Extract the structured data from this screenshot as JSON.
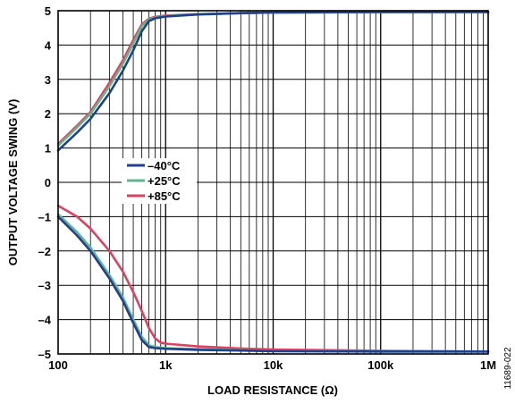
{
  "figure_id": "11689-022",
  "colors": {
    "minus40": "#1f3f8f",
    "plus25": "#5fb78f",
    "plus85": "#e0405f",
    "grid": "#000000"
  },
  "chart_data": {
    "type": "line",
    "xlabel": "LOAD RESISTANCE (Ω)",
    "ylabel": "OUTPUT VOLTAGE SWING (V)",
    "x_scale": "log",
    "xlim": [
      100,
      1000000
    ],
    "ylim": [
      -5,
      5
    ],
    "grid": true,
    "x_ticks": [
      {
        "value": 100,
        "label": "100"
      },
      {
        "value": 1000,
        "label": "1k"
      },
      {
        "value": 10000,
        "label": "10k"
      },
      {
        "value": 100000,
        "label": "100k"
      },
      {
        "value": 1000000,
        "label": "1M"
      }
    ],
    "y_ticks": [
      {
        "value": 5,
        "label": "5"
      },
      {
        "value": 4,
        "label": "4"
      },
      {
        "value": 3,
        "label": "3"
      },
      {
        "value": 2,
        "label": "2"
      },
      {
        "value": 1,
        "label": "1"
      },
      {
        "value": 0,
        "label": "0"
      },
      {
        "value": -1,
        "label": "–1"
      },
      {
        "value": -2,
        "label": "–2"
      },
      {
        "value": -3,
        "label": "–3"
      },
      {
        "value": -4,
        "label": "–4"
      },
      {
        "value": -5,
        "label": "–5"
      }
    ],
    "legend_position": "center-left",
    "series": [
      {
        "name": "–40°C",
        "color": "#1f3f8f",
        "high": {
          "x": [
            100,
            150,
            200,
            300,
            400,
            500,
            600,
            700,
            800,
            1000,
            2000,
            5000,
            10000,
            100000,
            1000000
          ],
          "y": [
            0.93,
            1.45,
            1.85,
            2.6,
            3.25,
            3.85,
            4.4,
            4.7,
            4.78,
            4.83,
            4.89,
            4.93,
            4.95,
            4.96,
            4.96
          ]
        },
        "low": {
          "x": [
            100,
            150,
            200,
            300,
            400,
            500,
            600,
            700,
            800,
            1000,
            2000,
            5000,
            10000,
            100000,
            1000000
          ],
          "y": [
            -1.0,
            -1.55,
            -2.0,
            -2.8,
            -3.45,
            -4.1,
            -4.6,
            -4.8,
            -4.83,
            -4.85,
            -4.88,
            -4.9,
            -4.92,
            -4.93,
            -4.93
          ]
        }
      },
      {
        "name": "+25°C",
        "color": "#5fb78f",
        "high": {
          "x": [
            100,
            150,
            200,
            300,
            400,
            500,
            600,
            700,
            800,
            1000,
            2000,
            5000,
            10000,
            100000,
            1000000
          ],
          "y": [
            1.07,
            1.6,
            2.0,
            2.8,
            3.45,
            4.05,
            4.55,
            4.75,
            4.8,
            4.84,
            4.9,
            4.93,
            4.95,
            4.96,
            4.96
          ]
        },
        "low": {
          "x": [
            100,
            150,
            200,
            300,
            400,
            500,
            600,
            700,
            800,
            1000,
            2000,
            5000,
            10000,
            100000,
            1000000
          ],
          "y": [
            -0.93,
            -1.45,
            -1.9,
            -2.7,
            -3.35,
            -4.0,
            -4.5,
            -4.75,
            -4.8,
            -4.83,
            -4.86,
            -4.89,
            -4.91,
            -4.93,
            -4.93
          ]
        }
      },
      {
        "name": "+85°C",
        "color": "#e0405f",
        "high": {
          "x": [
            100,
            150,
            200,
            300,
            400,
            500,
            600,
            700,
            800,
            1000,
            2000,
            5000,
            10000,
            100000,
            1000000
          ],
          "y": [
            1.12,
            1.65,
            2.05,
            2.9,
            3.55,
            4.15,
            4.6,
            4.77,
            4.82,
            4.86,
            4.9,
            4.93,
            4.95,
            4.96,
            4.96
          ]
        },
        "low": {
          "x": [
            100,
            150,
            200,
            300,
            400,
            500,
            600,
            700,
            800,
            900,
            1000,
            2000,
            5000,
            10000,
            100000,
            1000000
          ],
          "y": [
            -0.68,
            -1.0,
            -1.35,
            -2.0,
            -2.6,
            -3.2,
            -3.75,
            -4.25,
            -4.55,
            -4.67,
            -4.7,
            -4.78,
            -4.84,
            -4.87,
            -4.91,
            -4.93
          ]
        }
      }
    ]
  }
}
